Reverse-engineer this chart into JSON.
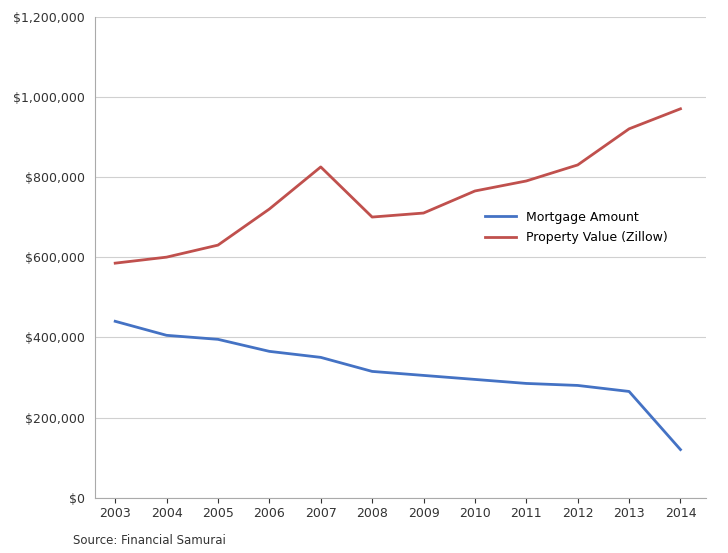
{
  "years": [
    2003,
    2004,
    2005,
    2006,
    2007,
    2008,
    2009,
    2010,
    2011,
    2012,
    2013,
    2014
  ],
  "mortgage": [
    440000,
    405000,
    395000,
    365000,
    350000,
    315000,
    305000,
    295000,
    285000,
    280000,
    265000,
    120000
  ],
  "property_value": [
    585000,
    600000,
    630000,
    720000,
    825000,
    700000,
    710000,
    765000,
    790000,
    830000,
    920000,
    970000
  ],
  "mortgage_color": "#4472C4",
  "property_color": "#C0504D",
  "background_color": "#FFFFFF",
  "grid_color": "#D0D0D0",
  "ylim": [
    0,
    1200000
  ],
  "yticks": [
    0,
    200000,
    400000,
    600000,
    800000,
    1000000,
    1200000
  ],
  "mortgage_label": "Mortgage Amount",
  "property_label": "Property Value (Zillow)",
  "source_text": "Source: Financial Samurai"
}
